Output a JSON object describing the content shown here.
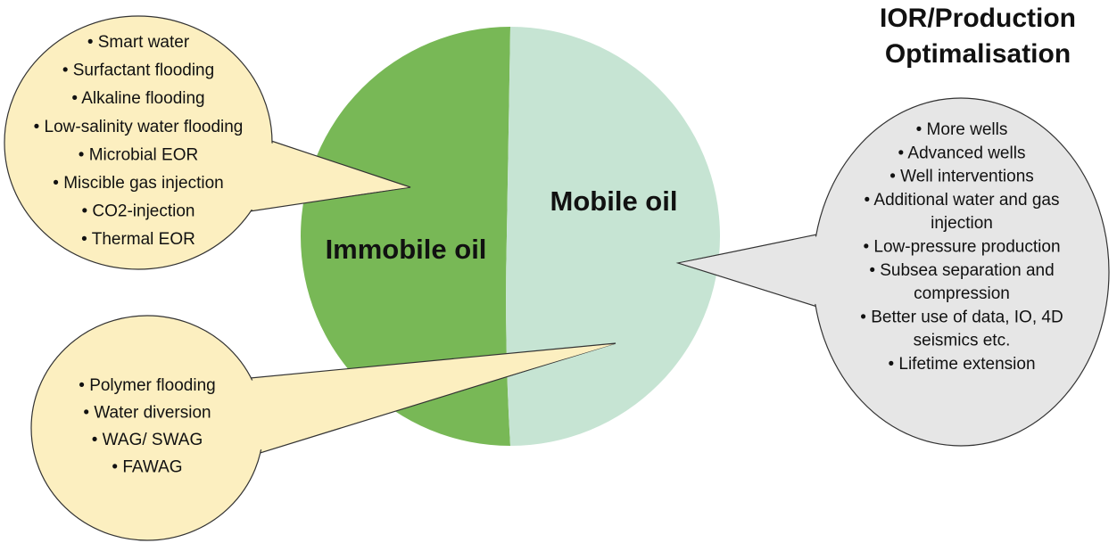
{
  "title": {
    "lines": [
      "IOR/Production",
      "Optimalisation"
    ]
  },
  "circle": {
    "left_label": "Immobile oil",
    "right_label": "Mobile oil"
  },
  "bubbles": [
    {
      "items": [
        "• Smart water",
        "• Surfactant flooding",
        "• Alkaline flooding",
        "• Low-salinity water flooding",
        "• Microbial EOR",
        "• Miscible gas injection",
        "• CO2-injection",
        "• Thermal EOR"
      ]
    },
    {
      "items": [
        "• Polymer flooding",
        "• Water diversion",
        "• WAG/ SWAG",
        "• FAWAG"
      ]
    },
    {
      "items": [
        "• More wells",
        "• Advanced wells",
        "• Well interventions",
        "• Additional water and gas",
        "injection",
        "• Low-pressure production",
        "• Subsea separation and",
        "compression",
        "• Better use of data, IO, 4D",
        "seismics etc.",
        "• Lifetime extension"
      ]
    }
  ]
}
